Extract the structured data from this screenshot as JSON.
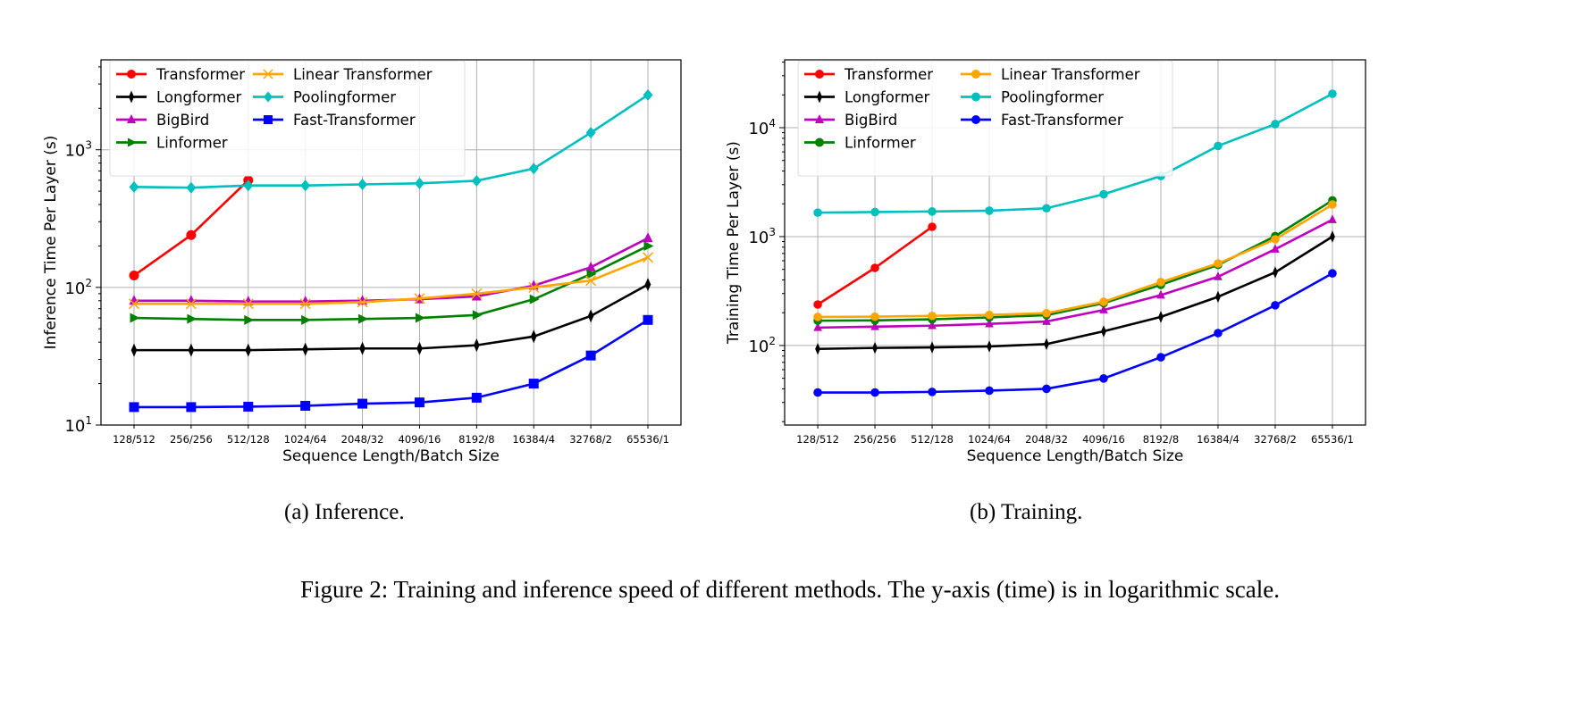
{
  "captions": {
    "a": "(a)  Inference.",
    "b": "(b)  Training.",
    "figure": "Figure 2: Training and inference speed of different methods. The y-axis (time) is in logarithmic scale."
  },
  "chart_data": [
    {
      "type": "line",
      "title": "",
      "xlabel": "Sequence Length/Batch Size",
      "ylabel": "Inference Time Per Layer (s)",
      "yscale": "log",
      "ylim": [
        10,
        4500
      ],
      "yticks": [
        {
          "base": "10",
          "exp": "1"
        },
        {
          "base": "10",
          "exp": "2"
        },
        {
          "base": "10",
          "exp": "3"
        }
      ],
      "grid": true,
      "legend": "top-left",
      "categories": [
        "128/512",
        "256/256",
        "512/128",
        "1024/64",
        "2048/32",
        "4096/16",
        "8192/8",
        "16384/4",
        "32768/2",
        "65536/1"
      ],
      "series": [
        {
          "name": "Transformer",
          "color": "#ff0000",
          "marker": "circle",
          "values": [
            122,
            240,
            600,
            null,
            null,
            null,
            null,
            null,
            null,
            null
          ]
        },
        {
          "name": "Longformer",
          "color": "#000000",
          "marker": "thin-diamond",
          "values": [
            35,
            35,
            35,
            35.5,
            36,
            36,
            38,
            44,
            62,
            105
          ]
        },
        {
          "name": "BigBird",
          "color": "#bf00bf",
          "marker": "triangle",
          "values": [
            80,
            80,
            79,
            79,
            80,
            82,
            86,
            103,
            140,
            228
          ]
        },
        {
          "name": "Linformer",
          "color": "#008000",
          "marker": "triangle-right",
          "values": [
            60,
            59,
            58,
            58,
            59,
            60,
            63,
            82,
            125,
            200
          ]
        },
        {
          "name": "Linear Transformer",
          "color": "#ffa500",
          "marker": "x",
          "values": [
            76,
            76,
            76,
            76,
            78,
            83,
            90,
            100,
            112,
            165
          ]
        },
        {
          "name": "Poolingformer",
          "color": "#00bfbf",
          "marker": "diamond",
          "values": [
            537,
            530,
            550,
            550,
            560,
            570,
            595,
            730,
            1330,
            2500
          ]
        },
        {
          "name": "Fast-Transformer",
          "color": "#0000ff",
          "marker": "square",
          "values": [
            13.5,
            13.5,
            13.6,
            13.8,
            14.3,
            14.6,
            15.8,
            20,
            32,
            58
          ]
        }
      ]
    },
    {
      "type": "line",
      "title": "",
      "xlabel": "Sequence Length/Batch Size",
      "ylabel": "Training Time Per Layer (s)",
      "yscale": "log",
      "ylim": [
        18.6,
        42000
      ],
      "yticks": [
        {
          "base": "10",
          "exp": "2"
        },
        {
          "base": "10",
          "exp": "3"
        },
        {
          "base": "10",
          "exp": "4"
        }
      ],
      "grid": true,
      "legend": "top-left",
      "categories": [
        "128/512",
        "256/256",
        "512/128",
        "1024/64",
        "2048/32",
        "4096/16",
        "8192/8",
        "16384/4",
        "32768/2",
        "65536/1"
      ],
      "series": [
        {
          "name": "Transformer",
          "color": "#ff0000",
          "marker": "circle",
          "values": [
            238,
            516,
            1230,
            null,
            null,
            null,
            null,
            null,
            null,
            null
          ]
        },
        {
          "name": "Longformer",
          "color": "#000000",
          "marker": "thin-diamond",
          "values": [
            93,
            95,
            96,
            98,
            103,
            135,
            183,
            280,
            470,
            1000
          ]
        },
        {
          "name": "BigBird",
          "color": "#bf00bf",
          "marker": "triangle",
          "values": [
            146,
            149,
            152,
            158,
            166,
            212,
            290,
            428,
            766,
            1430
          ]
        },
        {
          "name": "Linformer",
          "color": "#008000",
          "marker": "circle",
          "values": [
            169,
            170,
            174,
            181,
            190,
            245,
            360,
            550,
            1010,
            2150
          ]
        },
        {
          "name": "Linear Transformer",
          "color": "#ffa500",
          "marker": "circle",
          "values": [
            183,
            184,
            187,
            191,
            198,
            252,
            382,
            567,
            944,
            1970
          ]
        },
        {
          "name": "Poolingformer",
          "color": "#00bfbf",
          "marker": "circle",
          "values": [
            1660,
            1680,
            1700,
            1730,
            1820,
            2450,
            3600,
            6800,
            10800,
            20500
          ]
        },
        {
          "name": "Fast-Transformer",
          "color": "#0000ff",
          "marker": "circle",
          "values": [
            37,
            37,
            37.5,
            38.5,
            40,
            49.8,
            78,
            130,
            234,
            460
          ]
        }
      ]
    }
  ]
}
